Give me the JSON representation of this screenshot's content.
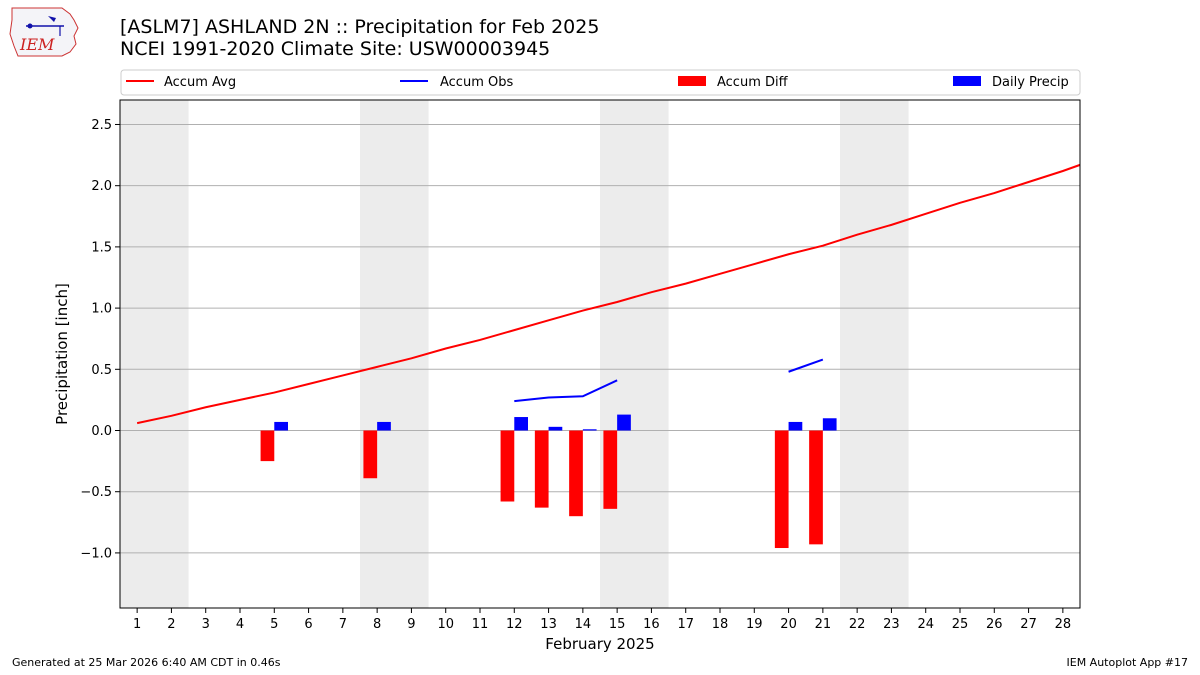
{
  "header": {
    "title_line1": "[ASLM7] ASHLAND 2N :: Precipitation for Feb 2025",
    "title_line2": "NCEI 1991-2020 Climate Site: USW00003945"
  },
  "logo": {
    "text": "IEM"
  },
  "footer": {
    "generated": "Generated at 25 Mar 2026 6:40 AM CDT in 0.46s",
    "app": "IEM Autoplot App #17"
  },
  "colors": {
    "avg": "#ff0000",
    "obs": "#0000ff",
    "diff": "#ff0000",
    "daily": "#0000ff",
    "weekend": "#ececec",
    "grid": "#b0b0b0"
  },
  "chart_data": {
    "type": "bar",
    "xlabel": "February 2025",
    "ylabel": "Precipitation [inch]",
    "xlim": [
      0.5,
      28.5
    ],
    "ylim": [
      -1.45,
      2.7
    ],
    "xticks": [
      1,
      2,
      3,
      4,
      5,
      6,
      7,
      8,
      9,
      10,
      11,
      12,
      13,
      14,
      15,
      16,
      17,
      18,
      19,
      20,
      21,
      22,
      23,
      24,
      25,
      26,
      27,
      28
    ],
    "yticks": [
      -1.0,
      -0.5,
      0.0,
      0.5,
      1.0,
      1.5,
      2.0,
      2.5
    ],
    "ytick_labels": [
      "−1.0",
      "−0.5",
      "0.0",
      "0.5",
      "1.0",
      "1.5",
      "2.0",
      "2.5"
    ],
    "grid": true,
    "weekend_spans": [
      [
        0.5,
        2.5
      ],
      [
        7.5,
        9.5
      ],
      [
        14.5,
        16.5
      ],
      [
        21.5,
        23.5
      ]
    ],
    "legend": [
      "Accum Avg",
      "Accum Obs",
      "Accum Diff",
      "Daily Precip"
    ],
    "series": [
      {
        "name": "Accum Avg",
        "type": "line",
        "days": [
          1,
          2,
          3,
          4,
          5,
          6,
          7,
          8,
          9,
          10,
          11,
          12,
          13,
          14,
          15,
          16,
          17,
          18,
          19,
          20,
          21,
          22,
          23,
          24,
          25,
          26,
          27,
          28,
          28.5
        ],
        "values": [
          0.06,
          0.12,
          0.19,
          0.25,
          0.31,
          0.38,
          0.45,
          0.52,
          0.59,
          0.67,
          0.74,
          0.82,
          0.9,
          0.98,
          1.05,
          1.13,
          1.2,
          1.28,
          1.36,
          1.44,
          1.51,
          1.6,
          1.68,
          1.77,
          1.86,
          1.94,
          2.03,
          2.12,
          2.17
        ]
      },
      {
        "name": "Accum Obs",
        "type": "line",
        "segments": [
          {
            "days": [
              12,
              13,
              14,
              15
            ],
            "values": [
              0.24,
              0.27,
              0.28,
              0.41
            ]
          },
          {
            "days": [
              20,
              21
            ],
            "values": [
              0.48,
              0.58
            ]
          }
        ]
      },
      {
        "name": "Accum Diff",
        "type": "bar",
        "days": [
          5,
          8,
          12,
          13,
          14,
          15,
          20,
          21
        ],
        "values": [
          -0.25,
          -0.39,
          -0.58,
          -0.63,
          -0.7,
          -0.64,
          -0.96,
          -0.93
        ]
      },
      {
        "name": "Daily Precip",
        "type": "bar",
        "days": [
          5,
          8,
          12,
          13,
          14,
          15,
          20,
          21
        ],
        "values": [
          0.07,
          0.07,
          0.11,
          0.03,
          0.01,
          0.13,
          0.07,
          0.1
        ]
      }
    ]
  }
}
